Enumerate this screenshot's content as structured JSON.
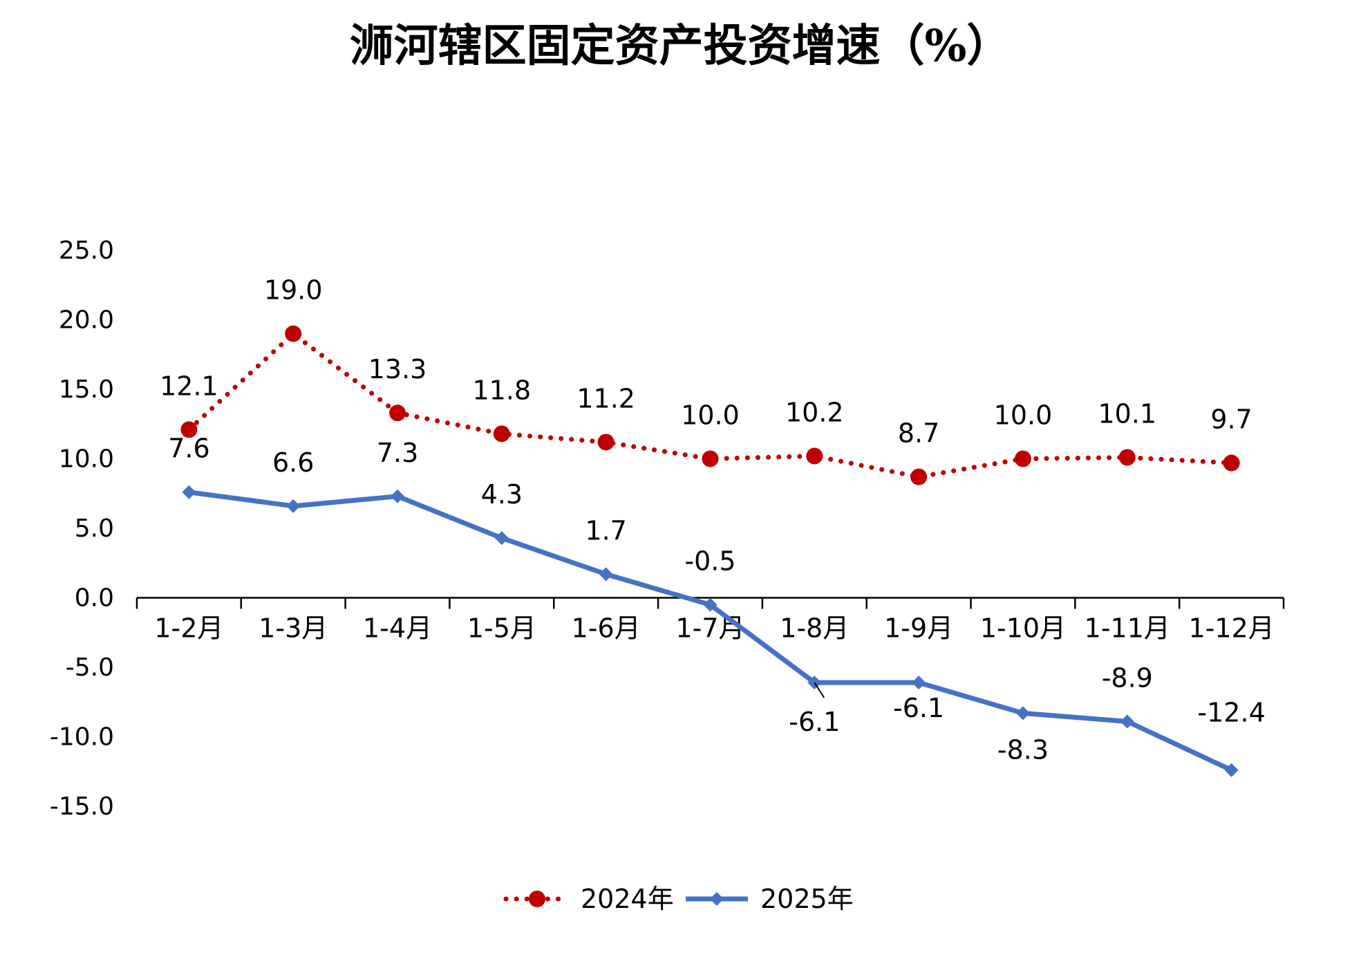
{
  "chart_data": {
    "type": "line",
    "title": "浉河辖区固定资产投资增速（%）",
    "categories": [
      "1-2月",
      "1-3月",
      "1-4月",
      "1-5月",
      "1-6月",
      "1-7月",
      "1-8月",
      "1-9月",
      "1-10月",
      "1-11月",
      "1-12月"
    ],
    "series": [
      {
        "name": "2024年",
        "values": [
          12.1,
          19.0,
          13.3,
          11.8,
          11.2,
          10.0,
          10.2,
          8.7,
          10.0,
          10.1,
          9.7
        ],
        "labels": [
          "12.1",
          "19.0",
          "13.3",
          "11.8",
          "11.2",
          "10.0",
          "10.2",
          "8.7",
          "10.0",
          "10.1",
          "9.7"
        ],
        "color": "#c00000",
        "line_style": "dotted",
        "marker": "circle"
      },
      {
        "name": "2025年",
        "values": [
          7.6,
          6.6,
          7.3,
          4.3,
          1.7,
          -0.5,
          -6.1,
          -6.1,
          -8.3,
          -8.9,
          -12.4
        ],
        "labels": [
          "7.6",
          "6.6",
          "7.3",
          "4.3",
          "1.7",
          "-0.5",
          "-6.1",
          "-6.1",
          "-8.3",
          "-8.9",
          "-12.4"
        ],
        "color": "#4472c4",
        "line_style": "solid",
        "marker": "diamond"
      }
    ],
    "yticks": [
      "25.0",
      "20.0",
      "15.0",
      "10.0",
      "5.0",
      "0.0",
      "-5.0",
      "-10.0",
      "-15.0"
    ],
    "ylim": [
      -15,
      25
    ],
    "grid": false,
    "legend_position": "bottom"
  }
}
